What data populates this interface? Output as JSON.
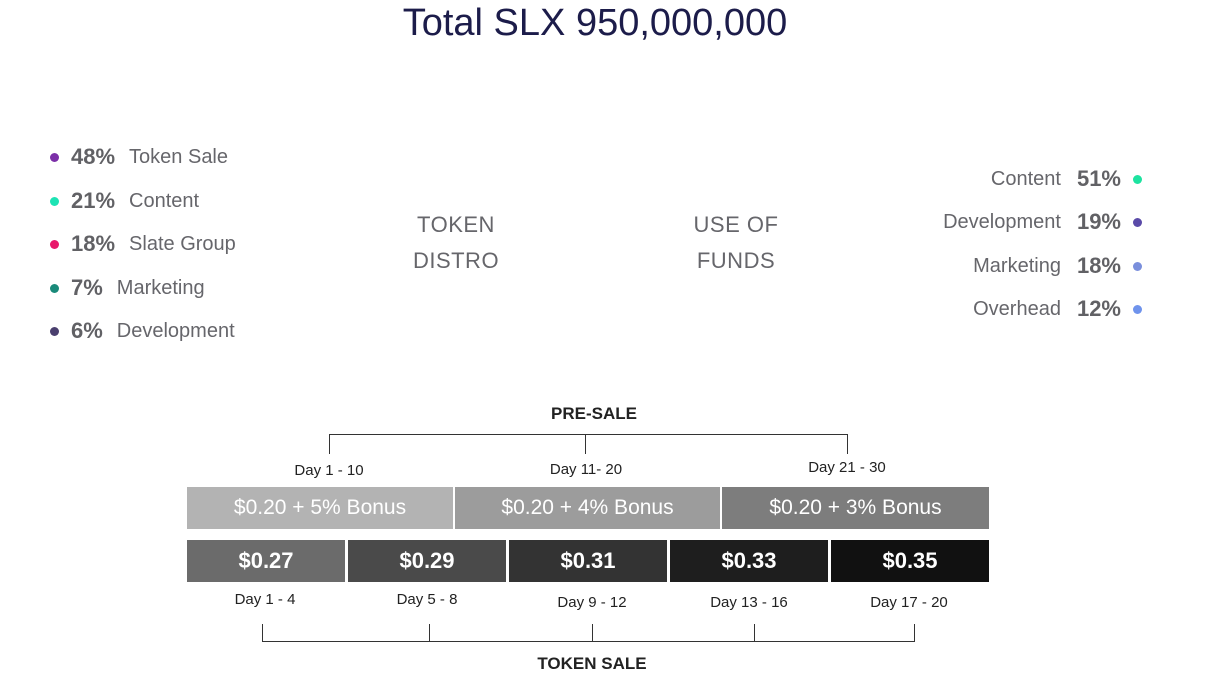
{
  "title": "Total SLX 950,000,000",
  "token_distro": {
    "label_line1": "TOKEN",
    "label_line2": "DISTRO",
    "items": [
      {
        "pct": "48%",
        "label": "Token Sale",
        "color": "#7b2fa8"
      },
      {
        "pct": "21%",
        "label": "Content",
        "color": "#1de3b4"
      },
      {
        "pct": "18%",
        "label": "Slate Group",
        "color": "#e8196b"
      },
      {
        "pct": "7%",
        "label": "Marketing",
        "color": "#1a8a7a"
      },
      {
        "pct": "6%",
        "label": "Development",
        "color": "#4a3f6e"
      }
    ]
  },
  "use_of_funds": {
    "label_line1": "USE OF",
    "label_line2": "FUNDS",
    "items": [
      {
        "label": "Content",
        "pct": "51%",
        "color": "#1de3a0"
      },
      {
        "label": "Development",
        "pct": "19%",
        "color": "#5a4aa8"
      },
      {
        "label": "Marketing",
        "pct": "18%",
        "color": "#7a8fdc"
      },
      {
        "label": "Overhead",
        "pct": "12%",
        "color": "#6f93ec"
      }
    ]
  },
  "presale": {
    "title": "PRE-SALE",
    "days": [
      "Day 1 - 10",
      "Day 11- 20",
      "Day 21 - 30"
    ],
    "tiers": [
      {
        "label": "$0.20 + 5% Bonus",
        "color": "#b3b3b3"
      },
      {
        "label": "$0.20 + 4% Bonus",
        "color": "#9c9c9c"
      },
      {
        "label": "$0.20 + 3% Bonus",
        "color": "#7d7d7d"
      }
    ]
  },
  "token_sale": {
    "title": "TOKEN SALE",
    "days": [
      "Day 1 - 4",
      "Day 5 - 8",
      "Day 9 - 12",
      "Day 13 - 16",
      "Day 17 - 20"
    ],
    "prices": [
      {
        "label": "$0.27",
        "color": "#6b6b6b"
      },
      {
        "label": "$0.29",
        "color": "#4a4a4a"
      },
      {
        "label": "$0.31",
        "color": "#333333"
      },
      {
        "label": "$0.33",
        "color": "#1e1e1e"
      },
      {
        "label": "$0.35",
        "color": "#111111"
      }
    ]
  }
}
